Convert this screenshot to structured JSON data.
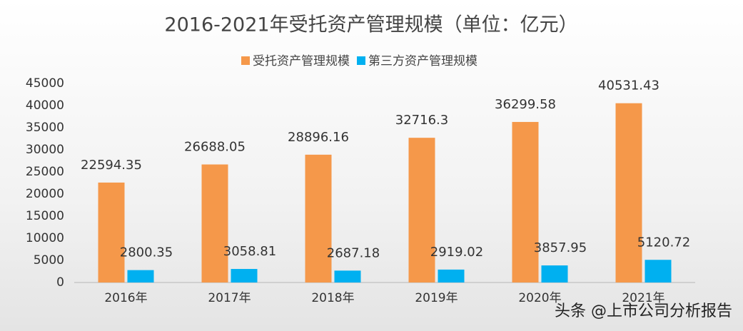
{
  "chart_data": {
    "type": "bar",
    "title": "2016-2021年受托资产管理规模（单位：亿元）",
    "categories": [
      "2016年",
      "2017年",
      "2018年",
      "2019年",
      "2020年",
      "2021年"
    ],
    "series": [
      {
        "name": "受托资产管理规模",
        "color": "#f5984a",
        "values": [
          22594.35,
          26688.05,
          28896.16,
          32716.3,
          36299.58,
          40531.43
        ]
      },
      {
        "name": "第三方资产管理规模",
        "color": "#00b0f0",
        "values": [
          2800.35,
          3058.81,
          2687.18,
          2919.02,
          3857.95,
          5120.72
        ]
      }
    ],
    "ylim": [
      0,
      45000
    ],
    "yticks": [
      0,
      5000,
      10000,
      15000,
      20000,
      25000,
      30000,
      35000,
      40000,
      45000
    ],
    "grid": false,
    "legend": "top",
    "watermark": "头条 @上市公司分析报告"
  }
}
